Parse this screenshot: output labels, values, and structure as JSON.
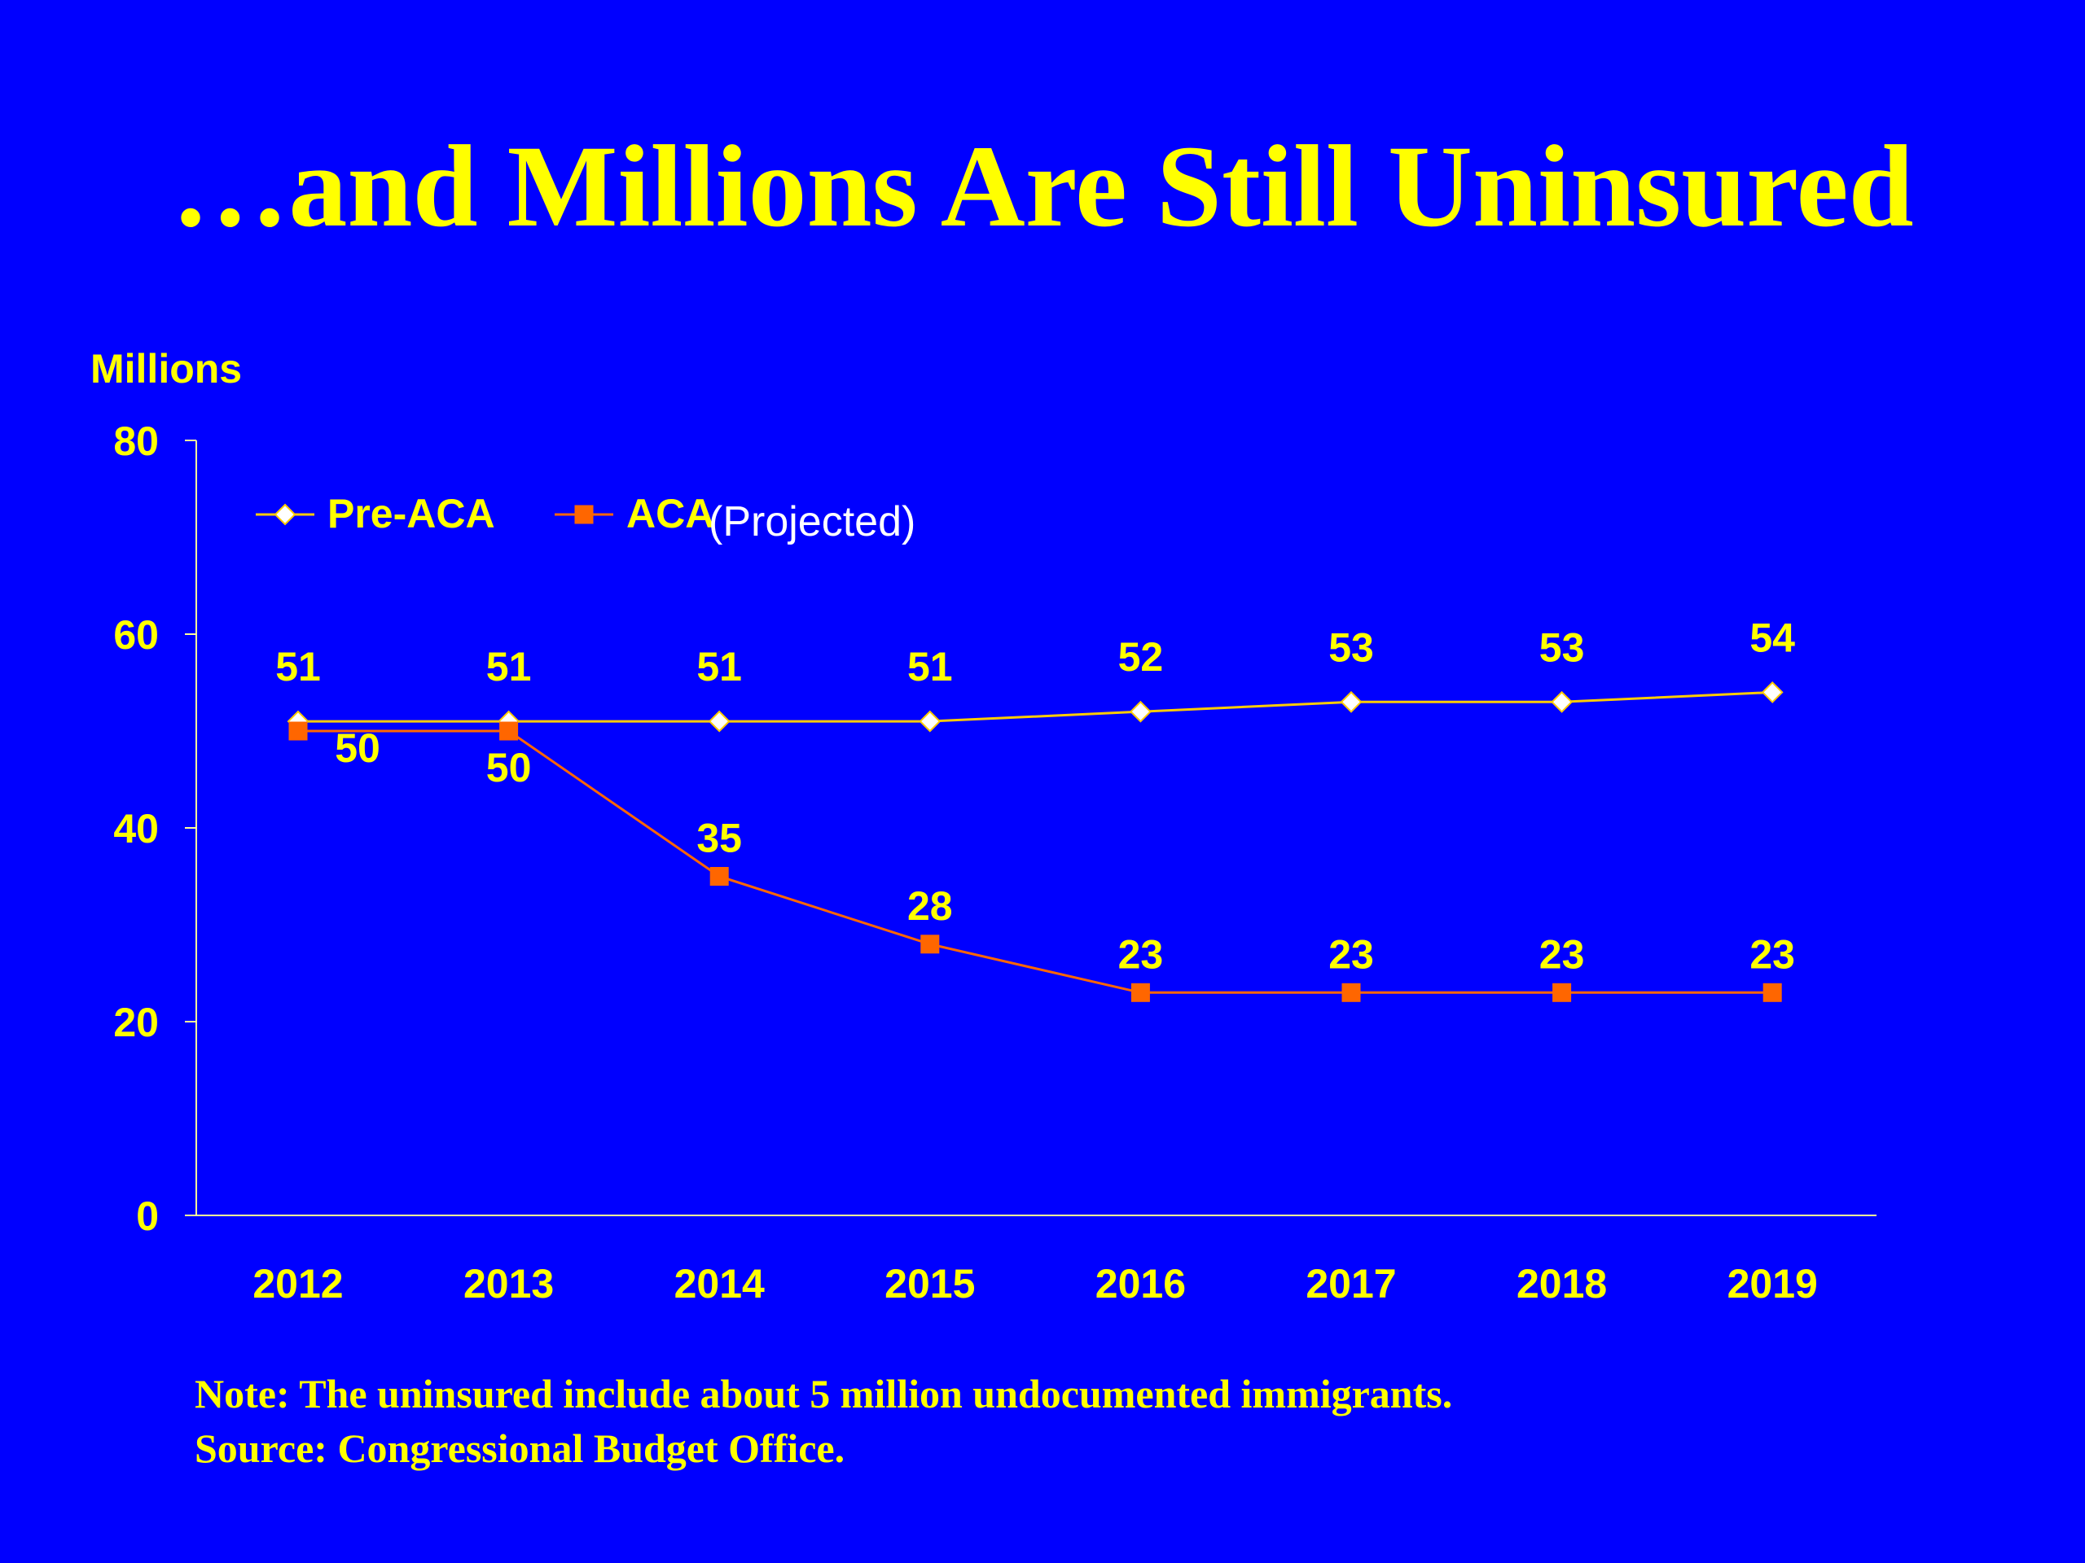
{
  "slide": {
    "title": "…and Millions Are Still Uninsured",
    "note": "Note: The uninsured include about 5 million undocumented immigrants.",
    "source": "Source: Congressional Budget Office."
  },
  "colors": {
    "background": "#0000FF",
    "text": "#FFFF00",
    "pre_aca_line": "#FFCC00",
    "pre_aca_marker": "#FFFFFF",
    "aca_line": "#FF6600",
    "annotation": "#FFFFFF"
  },
  "chart_data": {
    "type": "line",
    "title": "",
    "xlabel": "",
    "ylabel": "Millions",
    "ylim": [
      0,
      80
    ],
    "yticks": [
      "0",
      "20",
      "40",
      "60",
      "80"
    ],
    "categories": [
      "2012",
      "2013",
      "2014",
      "2015",
      "2016",
      "2017",
      "2018",
      "2019"
    ],
    "series": [
      {
        "name": "Pre-ACA",
        "values": [
          51,
          51,
          51,
          51,
          52,
          53,
          53,
          54
        ],
        "marker": "diamond"
      },
      {
        "name": "ACA",
        "values": [
          50,
          50,
          35,
          28,
          23,
          23,
          23,
          23
        ],
        "marker": "square"
      }
    ],
    "annotation": "(Projected)",
    "legend_position": "top-left",
    "grid": false
  }
}
